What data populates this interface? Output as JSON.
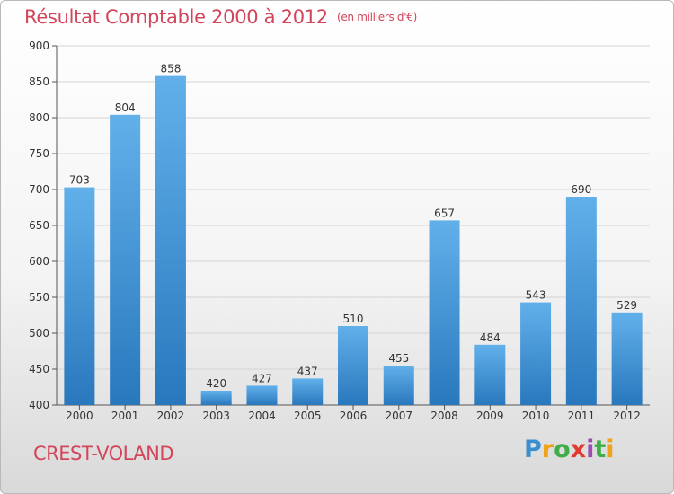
{
  "chart_data": {
    "type": "bar",
    "title": "Résultat Comptable 2000 à 2012",
    "unit": "(en milliers d'€)",
    "categories": [
      "2000",
      "2001",
      "2002",
      "2003",
      "2004",
      "2005",
      "2006",
      "2007",
      "2008",
      "2009",
      "2010",
      "2011",
      "2012"
    ],
    "values": [
      703,
      804,
      858,
      420,
      427,
      437,
      510,
      455,
      657,
      484,
      543,
      690,
      529
    ],
    "ylim": [
      400,
      900
    ],
    "yticks": [
      400,
      450,
      500,
      550,
      600,
      650,
      700,
      750,
      800,
      850,
      900
    ],
    "grid": true,
    "bar_color": "#3d8fd6"
  },
  "commune": "CREST-VOLAND",
  "logo": {
    "letters": [
      "P",
      "r",
      "o",
      "x",
      "i",
      "t",
      "i"
    ],
    "colors": [
      "#3a8fd0",
      "#f0a21a",
      "#3fae49",
      "#e23a2e",
      "#9a4fb0",
      "#3fae49",
      "#f0a21a"
    ]
  },
  "colors": {
    "title": "#d2455a",
    "bar_light": "#62b0ea",
    "bar_dark": "#2978bd"
  }
}
